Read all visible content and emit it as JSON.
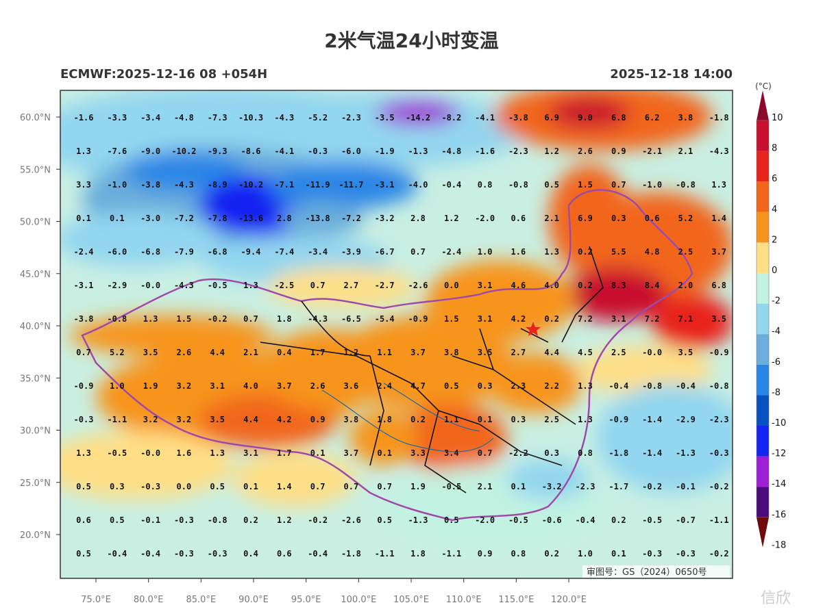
{
  "title": "2米气温24小时变温",
  "model_run": "ECMWF:2025-12-16 08 +054H",
  "valid_time": "2025-12-18 14:00",
  "legend": {
    "unit": "(°C)",
    "labels": [
      "10",
      "8",
      "6",
      "4",
      "2",
      "0",
      "-2",
      "-4",
      "-6",
      "-8",
      "-10",
      "-12",
      "-14",
      "-16",
      "-18"
    ],
    "colors": [
      "#8b0a2a",
      "#c8102e",
      "#e8231c",
      "#f2661b",
      "#f7941d",
      "#ffdf86",
      "#c2f2e1",
      "#93d6ef",
      "#6aaedb",
      "#2a86e6",
      "#0650c0",
      "#1424f2",
      "#9f1fd6",
      "#4a0a7a",
      "#6e0a0a"
    ]
  },
  "axes": {
    "lat_labels": [
      "60.0°N",
      "55.0°N",
      "50.0°N",
      "45.0°N",
      "40.0°N",
      "35.0°N",
      "30.0°N",
      "25.0°N",
      "20.0°N"
    ],
    "lon_labels": [
      "75.0°E",
      "80.0°E",
      "85.0°E",
      "90.0°E",
      "95.0°E",
      "100.0°E",
      "105.0°E",
      "110.0°E",
      "115.0°E",
      "120.0°E"
    ]
  },
  "grid_values": [
    [
      "-1.6",
      "-3.3",
      "-3.4",
      "-4.8",
      "-7.3",
      "-10.3",
      "-4.3",
      "-5.2",
      "-2.3",
      "-3.5",
      "-14.2",
      "-8.2",
      "-4.1",
      "-3.8",
      "6.9",
      "9.0",
      "6.8",
      "6.2",
      "3.8",
      "-1.8"
    ],
    [
      "1.3",
      "-7.6",
      "-9.0",
      "-10.2",
      "-9.3",
      "-8.6",
      "-4.1",
      "-0.3",
      "-6.0",
      "-1.9",
      "-1.3",
      "-4.8",
      "-1.6",
      "-2.3",
      "1.2",
      "2.6",
      "0.9",
      "-2.1",
      "2.1",
      "-4.3"
    ],
    [
      "3.3",
      "-1.0",
      "-3.8",
      "-4.3",
      "-8.9",
      "-10.2",
      "-7.1",
      "-11.9",
      "-11.7",
      "-3.1",
      "-4.0",
      "-0.4",
      "0.8",
      "-0.8",
      "0.5",
      "1.5",
      "0.7",
      "-1.0",
      "-0.8",
      "1.3"
    ],
    [
      "0.1",
      "0.1",
      "-3.0",
      "-7.2",
      "-7.8",
      "-13.6",
      "2.8",
      "-13.8",
      "-7.2",
      "-3.2",
      "2.8",
      "1.2",
      "-2.0",
      "0.6",
      "2.1",
      "6.9",
      "0.3",
      "0.6",
      "5.2",
      "1.4"
    ],
    [
      "-2.4",
      "-6.0",
      "-6.8",
      "-7.9",
      "-6.8",
      "-9.4",
      "-7.4",
      "-3.4",
      "-3.9",
      "-6.7",
      "0.7",
      "-2.4",
      "1.0",
      "1.6",
      "1.3",
      "0.2",
      "5.5",
      "4.8",
      "2.5",
      "3.7"
    ],
    [
      "-3.1",
      "-2.9",
      "-0.0",
      "-4.3",
      "-0.5",
      "1.3",
      "-2.5",
      "0.7",
      "2.7",
      "-2.7",
      "-2.6",
      "0.0",
      "3.1",
      "4.6",
      "4.0",
      "0.2",
      "8.3",
      "8.4",
      "2.0",
      "6.8"
    ],
    [
      "-3.8",
      "-0.8",
      "1.3",
      "1.5",
      "-0.2",
      "0.7",
      "1.8",
      "-4.3",
      "-6.5",
      "-5.4",
      "-0.9",
      "1.5",
      "3.1",
      "4.2",
      "0.2",
      "7.2",
      "3.1",
      "7.2",
      "7.1",
      "3.5"
    ],
    [
      "0.7",
      "5.2",
      "3.5",
      "2.6",
      "4.4",
      "2.1",
      "0.4",
      "1.7",
      "1.2",
      "1.1",
      "3.7",
      "3.8",
      "3.5",
      "2.7",
      "4.4",
      "4.5",
      "2.5",
      "-0.0",
      "3.5",
      "-0.9"
    ],
    [
      "-0.9",
      "1.0",
      "1.9",
      "3.2",
      "3.1",
      "4.0",
      "3.7",
      "2.6",
      "3.6",
      "2.4",
      "4.7",
      "0.5",
      "0.3",
      "2.3",
      "2.2",
      "1.3",
      "-0.4",
      "-0.8",
      "-0.4",
      "-0.8"
    ],
    [
      "-0.3",
      "-1.1",
      "3.2",
      "3.2",
      "3.5",
      "4.4",
      "4.2",
      "0.9",
      "3.8",
      "1.8",
      "0.2",
      "1.1",
      "0.1",
      "0.3",
      "2.5",
      "1.3",
      "-0.9",
      "-1.4",
      "-2.9",
      "-2.3"
    ],
    [
      "1.3",
      "-0.5",
      "-0.0",
      "1.6",
      "1.3",
      "3.1",
      "1.7",
      "0.1",
      "3.7",
      "0.1",
      "3.3",
      "3.4",
      "0.7",
      "-2.2",
      "0.3",
      "0.8",
      "-1.8",
      "-1.4",
      "-1.3",
      "-0.3"
    ],
    [
      "0.5",
      "0.3",
      "-0.3",
      "0.0",
      "0.5",
      "0.1",
      "1.4",
      "0.7",
      "0.7",
      "0.7",
      "1.9",
      "-0.5",
      "2.1",
      "0.1",
      "-3.2",
      "-2.3",
      "-1.7",
      "-0.2",
      "-0.1",
      "-0.2"
    ],
    [
      "0.6",
      "0.5",
      "-0.1",
      "-0.3",
      "-0.8",
      "0.2",
      "1.2",
      "-0.2",
      "-2.6",
      "0.5",
      "-1.3",
      "0.5",
      "-2.0",
      "-0.5",
      "-0.6",
      "-0.4",
      "0.2",
      "-0.5",
      "-0.7",
      "-1.1"
    ],
    [
      "0.5",
      "-0.4",
      "-0.4",
      "-0.3",
      "-0.3",
      "0.4",
      "0.6",
      "-0.4",
      "-1.8",
      "-1.1",
      "1.8",
      "-1.1",
      "0.9",
      "0.8",
      "0.2",
      "1.0",
      "0.1",
      "-0.3",
      "-0.3",
      "-0.2"
    ]
  ],
  "approval_number": "审图号：GS（2024）0650号",
  "watermark": "信欣"
}
